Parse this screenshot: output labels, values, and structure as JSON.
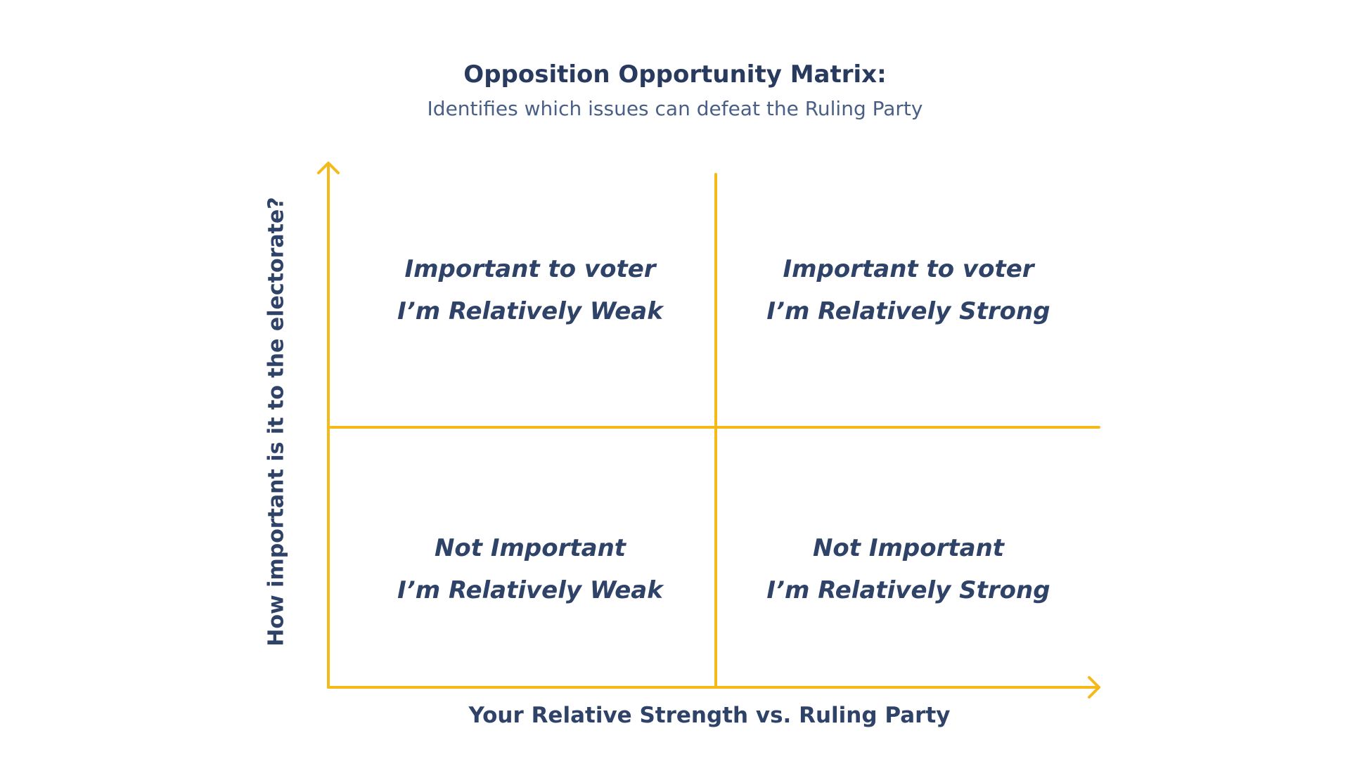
{
  "title": "Opposition Opportunity Matrix:",
  "subtitle": "Identifies which issues can defeat the Ruling Party",
  "axes": {
    "y_label": "How important is it to the electorate?",
    "x_label": "Your Relative Strength vs. Ruling Party"
  },
  "quadrants": {
    "top_left": {
      "line1": "Important to voter",
      "line2": "I’m Relatively Weak"
    },
    "top_right": {
      "line1": "Important to voter",
      "line2": "I’m Relatively Strong"
    },
    "bottom_left": {
      "line1": "Not Important",
      "line2": "I’m Relatively Weak"
    },
    "bottom_right": {
      "line1": "Not Important",
      "line2": "I’m Relatively Strong"
    }
  },
  "colors": {
    "axis_line": "#f6b91a",
    "text": "#2f4268"
  }
}
